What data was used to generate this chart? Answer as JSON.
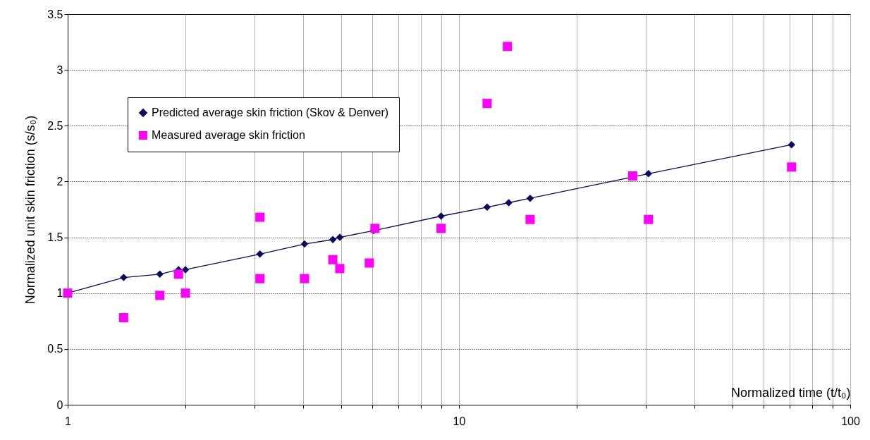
{
  "chart_data": {
    "type": "line",
    "xlabel": "Normalized time (t/t₀)",
    "ylabel": "Normalized unit skin friction (s/s₀)",
    "log": "x",
    "xlim": [
      1,
      100
    ],
    "ylim": [
      0,
      3.5
    ],
    "xticks": [
      1,
      {
        "value": 2,
        "label": null
      },
      {
        "value": 3,
        "label": null
      },
      {
        "value": 4,
        "label": null
      },
      {
        "value": 5,
        "label": null
      },
      {
        "value": 6,
        "label": null
      },
      {
        "value": 7,
        "label": null
      },
      {
        "value": 8,
        "label": null
      },
      {
        "value": 9,
        "label": null
      },
      10,
      {
        "value": 20,
        "label": null
      },
      {
        "value": 30,
        "label": null
      },
      {
        "value": 40,
        "label": null
      },
      {
        "value": 50,
        "label": null
      },
      {
        "value": 60,
        "label": null
      },
      {
        "value": 70,
        "label": null
      },
      {
        "value": 80,
        "label": null
      },
      {
        "value": 90,
        "label": null
      },
      100
    ],
    "yticks": [
      0,
      0.5,
      1,
      1.5,
      2,
      2.5,
      3,
      3.5
    ],
    "grid": true,
    "legend": "top left",
    "series": [
      {
        "type": "line",
        "name": "Predicted average skin friction (Skov & Denver)",
        "color": "#0a0a5e",
        "marker": "diamond",
        "x": [
          1,
          1.39,
          1.72,
          1.92,
          2.0,
          3.1,
          4.03,
          4.76,
          4.96,
          6.05,
          9.0,
          11.8,
          13.4,
          15.2,
          30.5,
          70.8
        ],
        "values": [
          1.0,
          1.14,
          1.17,
          1.21,
          1.21,
          1.35,
          1.44,
          1.48,
          1.5,
          1.56,
          1.69,
          1.77,
          1.81,
          1.85,
          2.07,
          2.33
        ]
      },
      {
        "type": "scatter",
        "name": "Measured average skin friction",
        "color": "#ff00ff",
        "marker": "square",
        "x": [
          1,
          1.39,
          1.72,
          1.92,
          2.0,
          3.1,
          3.1,
          4.03,
          4.76,
          4.96,
          5.9,
          6.1,
          9.0,
          11.8,
          13.3,
          15.2,
          27.8,
          30.5,
          70.8
        ],
        "values": [
          1.0,
          0.78,
          0.98,
          1.17,
          1.0,
          1.68,
          1.13,
          1.13,
          1.3,
          1.22,
          1.27,
          1.58,
          1.58,
          2.7,
          3.21,
          1.66,
          2.05,
          1.66,
          2.13
        ]
      }
    ]
  }
}
